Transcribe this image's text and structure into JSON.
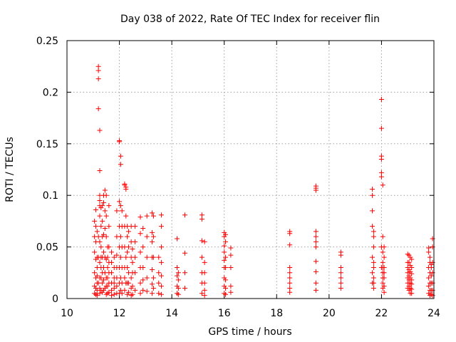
{
  "chart_data": {
    "type": "scatter",
    "title": "Day 038 of 2022, Rate Of TEC Index for receiver flin",
    "xlabel": "GPS time / hours",
    "ylabel": "ROTI / TECUs",
    "xlim": [
      10,
      24
    ],
    "ylim": [
      0,
      0.25
    ],
    "xticks": [
      "10",
      "12",
      "14",
      "16",
      "18",
      "20",
      "22",
      "24"
    ],
    "yticks": [
      "0",
      "0.05",
      "0.1",
      "0.15",
      "0.2",
      "0.25"
    ],
    "grid": true,
    "marker": "+",
    "color": "#ff0000",
    "x": [
      11.05,
      11.05,
      11.05,
      11.05,
      11.05,
      11.05,
      11.1,
      11.1,
      11.1,
      11.1,
      11.1,
      11.1,
      11.1,
      11.15,
      11.15,
      11.15,
      11.15,
      11.15,
      11.15,
      11.15,
      11.2,
      11.2,
      11.2,
      11.2,
      11.2,
      11.2,
      11.2,
      11.25,
      11.25,
      11.25,
      11.25,
      11.25,
      11.25,
      11.25,
      11.25,
      11.25,
      11.25,
      11.25,
      11.3,
      11.3,
      11.3,
      11.3,
      11.3,
      11.3,
      11.3,
      11.35,
      11.35,
      11.35,
      11.35,
      11.35,
      11.35,
      11.35,
      11.4,
      11.4,
      11.4,
      11.4,
      11.4,
      11.4,
      11.4,
      11.45,
      11.45,
      11.45,
      11.45,
      11.45,
      11.45,
      11.5,
      11.5,
      11.5,
      11.5,
      11.5,
      11.5,
      11.5,
      11.55,
      11.55,
      11.55,
      11.55,
      11.55,
      11.55,
      11.6,
      11.6,
      11.6,
      11.6,
      11.6,
      11.6,
      11.6,
      11.7,
      11.7,
      11.7,
      11.7,
      11.7,
      11.7,
      11.8,
      11.8,
      11.8,
      11.8,
      11.8,
      11.8,
      11.9,
      11.9,
      11.9,
      11.9,
      11.9,
      11.9,
      11.9,
      12.0,
      12.0,
      12.0,
      12.0,
      12.0,
      12.0,
      12.0,
      12.0,
      12.05,
      12.05,
      12.05,
      12.05,
      12.05,
      12.05,
      12.05,
      12.1,
      12.1,
      12.1,
      12.1,
      12.1,
      12.1,
      12.2,
      12.2,
      12.2,
      12.2,
      12.2,
      12.2,
      12.2,
      12.25,
      12.25,
      12.25,
      12.25,
      12.25,
      12.3,
      12.3,
      12.3,
      12.3,
      12.3,
      12.3,
      12.35,
      12.35,
      12.35,
      12.35,
      12.35,
      12.45,
      12.45,
      12.45,
      12.45,
      12.45,
      12.45,
      12.5,
      12.5,
      12.5,
      12.5,
      12.5,
      12.6,
      12.6,
      12.6,
      12.6,
      12.6,
      12.8,
      12.8,
      12.8,
      12.8,
      12.8,
      12.8,
      12.9,
      12.9,
      12.9,
      12.9,
      12.9,
      13.05,
      13.05,
      13.05,
      13.05,
      13.05,
      13.25,
      13.25,
      13.25,
      13.25,
      13.25,
      13.25,
      13.25,
      13.3,
      13.3,
      13.3,
      13.3,
      13.3,
      13.5,
      13.5,
      13.5,
      13.5,
      13.6,
      13.6,
      13.6,
      13.6,
      13.6,
      13.6,
      13.6,
      14.2,
      14.2,
      14.2,
      14.2,
      14.2,
      14.25,
      14.25,
      14.25,
      14.25,
      14.5,
      14.5,
      14.5,
      14.5,
      15.15,
      15.15,
      15.15,
      15.15,
      15.15,
      15.15,
      15.15,
      15.25,
      15.25,
      15.25,
      15.25,
      15.25,
      15.25,
      16.0,
      16.0,
      16.0,
      16.0,
      16.0,
      16.0,
      16.0,
      16.0,
      16.0,
      16.05,
      16.05,
      16.05,
      16.05,
      16.05,
      16.05,
      16.05,
      16.25,
      16.25,
      16.25,
      16.25,
      16.25,
      18.5,
      18.5,
      18.5,
      18.5,
      18.5,
      18.5,
      18.5,
      18.5,
      18.5,
      19.5,
      19.5,
      19.5,
      19.5,
      19.5,
      19.5,
      19.5,
      19.5,
      19.5,
      19.5,
      19.5,
      20.45,
      20.45,
      20.45,
      20.45,
      20.45,
      20.45,
      20.45,
      21.65,
      21.65,
      21.65,
      21.65,
      21.65,
      21.65,
      21.65,
      21.7,
      21.7,
      21.7,
      21.7,
      21.7,
      21.7,
      21.7,
      21.7,
      22.0,
      22.0,
      22.0,
      22.0,
      22.0,
      22.0,
      22.0,
      22.0,
      22.05,
      22.05,
      22.05,
      22.05,
      22.05,
      22.05,
      22.05,
      22.05,
      22.05,
      22.1,
      22.1,
      22.1,
      22.1,
      22.1,
      22.1,
      22.1,
      23.0,
      23.0,
      23.0,
      23.0,
      23.0,
      23.0,
      23.0,
      23.05,
      23.05,
      23.05,
      23.05,
      23.05,
      23.05,
      23.05,
      23.1,
      23.1,
      23.1,
      23.1,
      23.1,
      23.1,
      23.1,
      23.15,
      23.15,
      23.15,
      23.15,
      23.15,
      23.15,
      23.15,
      23.8,
      23.8,
      23.8,
      23.8,
      23.8,
      23.8,
      23.85,
      23.85,
      23.85,
      23.85,
      23.85,
      23.85,
      23.9,
      23.9,
      23.9,
      23.9,
      23.9,
      23.9,
      23.95,
      23.95,
      23.95,
      23.95,
      23.95,
      23.95,
      23.95
    ],
    "y": [
      0.075,
      0.06,
      0.045,
      0.025,
      0.012,
      0.005,
      0.086,
      0.07,
      0.055,
      0.038,
      0.02,
      0.01,
      0.004,
      0.065,
      0.04,
      0.03,
      0.022,
      0.015,
      0.008,
      0.003,
      0.225,
      0.221,
      0.213,
      0.184,
      0.06,
      0.04,
      0.015,
      0.163,
      0.124,
      0.1,
      0.095,
      0.09,
      0.08,
      0.055,
      0.035,
      0.02,
      0.01,
      0.005,
      0.088,
      0.07,
      0.05,
      0.04,
      0.03,
      0.02,
      0.008,
      0.09,
      0.075,
      0.06,
      0.04,
      0.025,
      0.015,
      0.006,
      0.1,
      0.093,
      0.062,
      0.045,
      0.03,
      0.018,
      0.008,
      0.105,
      0.085,
      0.068,
      0.04,
      0.025,
      0.01,
      0.1,
      0.08,
      0.06,
      0.038,
      0.02,
      0.012,
      0.004,
      0.05,
      0.04,
      0.03,
      0.02,
      0.012,
      0.005,
      0.09,
      0.07,
      0.05,
      0.035,
      0.025,
      0.015,
      0.006,
      0.045,
      0.035,
      0.025,
      0.015,
      0.008,
      0.003,
      0.04,
      0.03,
      0.02,
      0.015,
      0.01,
      0.004,
      0.085,
      0.06,
      0.042,
      0.03,
      0.02,
      0.012,
      0.005,
      0.153,
      0.152,
      0.094,
      0.07,
      0.05,
      0.03,
      0.015,
      0.005,
      0.138,
      0.13,
      0.09,
      0.06,
      0.04,
      0.02,
      0.008,
      0.085,
      0.07,
      0.05,
      0.03,
      0.015,
      0.005,
      0.111,
      0.11,
      0.07,
      0.05,
      0.03,
      0.02,
      0.008,
      0.108,
      0.106,
      0.08,
      0.04,
      0.015,
      0.07,
      0.06,
      0.045,
      0.03,
      0.015,
      0.004,
      0.065,
      0.05,
      0.025,
      0.015,
      0.006,
      0.07,
      0.055,
      0.04,
      0.02,
      0.01,
      0.003,
      0.048,
      0.035,
      0.025,
      0.012,
      0.004,
      0.07,
      0.055,
      0.04,
      0.025,
      0.008,
      0.079,
      0.063,
      0.045,
      0.03,
      0.015,
      0.005,
      0.068,
      0.05,
      0.03,
      0.018,
      0.008,
      0.08,
      0.06,
      0.04,
      0.02,
      0.007,
      0.083,
      0.064,
      0.055,
      0.04,
      0.028,
      0.014,
      0.005,
      0.08,
      0.06,
      0.04,
      0.02,
      0.01,
      0.04,
      0.025,
      0.015,
      0.005,
      0.081,
      0.07,
      0.05,
      0.035,
      0.022,
      0.012,
      0.004,
      0.058,
      0.03,
      0.022,
      0.012,
      0.005,
      0.025,
      0.018,
      0.01,
      0.004,
      0.081,
      0.044,
      0.025,
      0.01,
      0.081,
      0.077,
      0.056,
      0.04,
      0.025,
      0.015,
      0.005,
      0.055,
      0.035,
      0.025,
      0.015,
      0.008,
      0.003,
      0.064,
      0.06,
      0.051,
      0.045,
      0.037,
      0.03,
      0.02,
      0.012,
      0.005,
      0.062,
      0.055,
      0.04,
      0.03,
      0.018,
      0.01,
      0.004,
      0.049,
      0.042,
      0.03,
      0.012,
      0.006,
      0.065,
      0.063,
      0.052,
      0.03,
      0.025,
      0.02,
      0.015,
      0.01,
      0.006,
      0.109,
      0.107,
      0.105,
      0.065,
      0.06,
      0.055,
      0.05,
      0.036,
      0.026,
      0.015,
      0.008,
      0.045,
      0.042,
      0.03,
      0.025,
      0.02,
      0.015,
      0.01,
      0.106,
      0.1,
      0.085,
      0.07,
      0.04,
      0.025,
      0.015,
      0.065,
      0.06,
      0.05,
      0.035,
      0.03,
      0.02,
      0.015,
      0.01,
      0.193,
      0.165,
      0.138,
      0.135,
      0.122,
      0.118,
      0.05,
      0.03,
      0.11,
      0.06,
      0.045,
      0.035,
      0.03,
      0.025,
      0.02,
      0.015,
      0.01,
      0.05,
      0.04,
      0.03,
      0.025,
      0.02,
      0.012,
      0.006,
      0.043,
      0.035,
      0.03,
      0.025,
      0.02,
      0.015,
      0.01,
      0.042,
      0.035,
      0.028,
      0.022,
      0.018,
      0.012,
      0.008,
      0.04,
      0.032,
      0.026,
      0.02,
      0.015,
      0.01,
      0.005,
      0.038,
      0.03,
      0.024,
      0.018,
      0.014,
      0.009,
      0.005,
      0.049,
      0.045,
      0.03,
      0.02,
      0.012,
      0.005,
      0.04,
      0.035,
      0.025,
      0.015,
      0.008,
      0.003,
      0.033,
      0.03,
      0.022,
      0.015,
      0.008,
      0.004,
      0.058,
      0.05,
      0.035,
      0.025,
      0.015,
      0.008,
      0.003
    ]
  }
}
